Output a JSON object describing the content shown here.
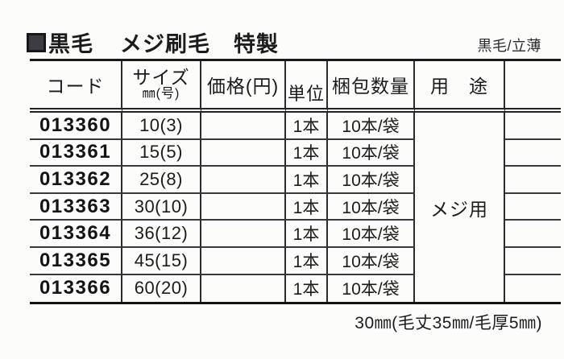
{
  "header": {
    "square_icon": "filled-square",
    "title_parts": [
      "黒毛",
      "メジ刷毛",
      "特製"
    ],
    "top_right_label": "黒毛/立薄"
  },
  "table": {
    "columns": {
      "code": "コード",
      "size_line1": "サイズ",
      "size_line2": "㎜(号)",
      "price": "価格(円)",
      "unit": "単位",
      "packing": "梱包数量",
      "usage": "用　途"
    },
    "usage_value": "メジ用",
    "rows": [
      {
        "code": "013360",
        "size": "10(3)",
        "price": "",
        "unit": "1本",
        "packing": "10本/袋"
      },
      {
        "code": "013361",
        "size": "15(5)",
        "price": "",
        "unit": "1本",
        "packing": "10本/袋"
      },
      {
        "code": "013362",
        "size": "25(8)",
        "price": "",
        "unit": "1本",
        "packing": "10本/袋"
      },
      {
        "code": "013363",
        "size": "30(10)",
        "price": "",
        "unit": "1本",
        "packing": "10本/袋"
      },
      {
        "code": "013364",
        "size": "36(12)",
        "price": "",
        "unit": "1本",
        "packing": "10本/袋"
      },
      {
        "code": "013365",
        "size": "45(15)",
        "price": "",
        "unit": "1本",
        "packing": "10本/袋"
      },
      {
        "code": "013366",
        "size": "60(20)",
        "price": "",
        "unit": "1本",
        "packing": "10本/袋"
      }
    ]
  },
  "footer": {
    "note": "30㎜(毛丈35㎜/毛厚5㎜)"
  }
}
